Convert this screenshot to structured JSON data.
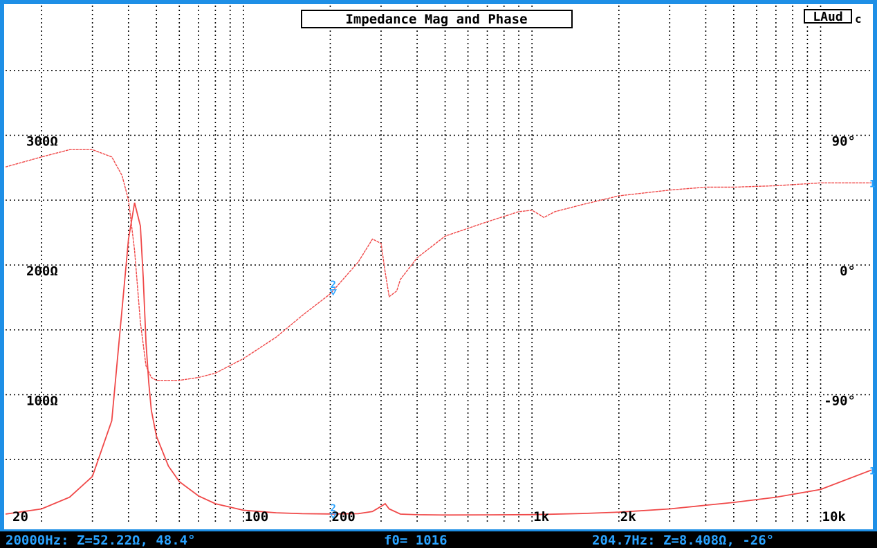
{
  "colors": {
    "frame": "#1e8fe6",
    "background": "#ffffff",
    "grid": "#000000",
    "trace": "#f04848",
    "status_bg": "#000000",
    "status_text": "#2aa3ff",
    "marker": "#2aa3ff"
  },
  "logo": {
    "main": "LAud",
    "sub": "c"
  },
  "status": {
    "left": "20000Hz: Z=52.22Ω, 48.4°",
    "middle": "f0= 1016",
    "right": "204.7Hz: Z=8.408Ω, -26°"
  },
  "markers": {
    "cursor_label": "2",
    "end_label": "1"
  },
  "chart_data": {
    "type": "line",
    "title": "Impedance Mag and Phase",
    "x_scale": "log",
    "xlim": [
      15,
      15000
    ],
    "x_tick_labels": [
      {
        "value": 20,
        "label": "20"
      },
      {
        "value": 100,
        "label": "100"
      },
      {
        "value": 200,
        "label": "200"
      },
      {
        "value": 1000,
        "label": "1k"
      },
      {
        "value": 2000,
        "label": "2k"
      },
      {
        "value": 10000,
        "label": "10k"
      }
    ],
    "y_left": {
      "unit": "ohm",
      "lim": [
        0,
        400
      ],
      "tick_labels": [
        {
          "value": 100,
          "label": "100Ω"
        },
        {
          "value": 200,
          "label": "200Ω"
        },
        {
          "value": 300,
          "label": "300Ω"
        }
      ]
    },
    "y_right": {
      "unit": "degree",
      "lim": [
        -180,
        180
      ],
      "tick_labels": [
        {
          "value": 90,
          "label": "90°"
        },
        {
          "value": 0,
          "label": "0°"
        },
        {
          "value": -90,
          "label": "-90°"
        }
      ]
    },
    "grid": true,
    "cursor_freq": 204.7,
    "series": [
      {
        "axis": "left",
        "x": [
          15,
          20,
          25,
          30,
          35,
          40,
          42,
          44,
          45,
          46,
          47,
          48,
          50,
          55,
          60,
          70,
          80,
          100,
          130,
          160,
          200,
          250,
          280,
          300,
          310,
          320,
          350,
          400,
          500,
          700,
          1000,
          1500,
          2000,
          3000,
          5000,
          7000,
          10000,
          15000
        ],
        "values": [
          8,
          12,
          21,
          37,
          80,
          220,
          248,
          230,
          190,
          140,
          110,
          88,
          68,
          45,
          33,
          22,
          16,
          11,
          9,
          8.3,
          8.1,
          8.3,
          10,
          14,
          16,
          12,
          8,
          7.5,
          7.3,
          7.4,
          7.6,
          8.5,
          9.5,
          12,
          17,
          21,
          27,
          42
        ]
      },
      {
        "axis": "right",
        "x": [
          15,
          20,
          25,
          30,
          35,
          38,
          40,
          42,
          44,
          46,
          48,
          50,
          60,
          70,
          80,
          100,
          130,
          160,
          200,
          250,
          280,
          300,
          310,
          320,
          340,
          350,
          400,
          500,
          700,
          900,
          1000,
          1100,
          1200,
          1500,
          2000,
          3000,
          4000,
          5000,
          7000,
          10000,
          15000
        ],
        "values": [
          68,
          75,
          80,
          80,
          75,
          62,
          45,
          10,
          -40,
          -70,
          -78,
          -80,
          -80,
          -78,
          -75,
          -65,
          -50,
          -35,
          -20,
          2,
          18,
          15,
          -5,
          -22,
          -18,
          -10,
          5,
          20,
          30,
          37,
          38,
          33,
          37,
          42,
          48,
          52,
          54,
          54,
          55,
          57,
          57
        ]
      }
    ]
  }
}
